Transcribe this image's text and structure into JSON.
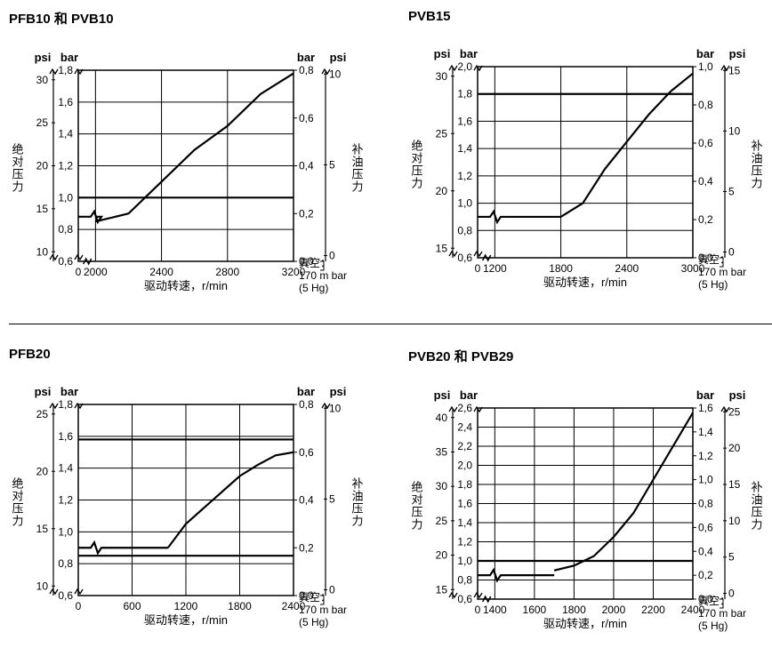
{
  "charts": [
    {
      "title": "PFB10  和  PVB10",
      "left_psi": {
        "label": "psi",
        "ticks": [
          10,
          15,
          20,
          25,
          30
        ]
      },
      "left_bar": {
        "label": "bar",
        "ticks": [
          0.6,
          0.8,
          1.0,
          1.2,
          1.4,
          1.6,
          1.8
        ],
        "ylim": [
          0.6,
          1.8
        ]
      },
      "right_bar": {
        "label": "bar",
        "ticks": [
          0,
          0.2,
          0.4,
          0.6,
          0.8
        ],
        "ylim": [
          0,
          0.8
        ]
      },
      "right_psi": {
        "label": "psi",
        "ticks": [
          0,
          5,
          10
        ]
      },
      "x": {
        "label": "驱动转速，r/min",
        "ticks": [
          0,
          2000,
          2400,
          2800,
          3200
        ],
        "xlim": [
          0,
          3200
        ],
        "break_after": 0
      },
      "y_axis_label_left": "绝对压力",
      "y_axis_label_right": "补油压力",
      "note": {
        "lines": [
          "真空：",
          "170 m bar",
          "(5  Hg)"
        ]
      },
      "curve": [
        [
          2000,
          0.85
        ],
        [
          2200,
          0.9
        ],
        [
          2400,
          1.1
        ],
        [
          2600,
          1.3
        ],
        [
          2800,
          1.45
        ],
        [
          3000,
          1.65
        ],
        [
          3200,
          1.78
        ]
      ],
      "hline": 1.0,
      "zigzag_y": 0.88,
      "colors": {
        "line": "#000000",
        "grid": "#000000",
        "bg": "#ffffff"
      }
    },
    {
      "title": "PVB15",
      "left_psi": {
        "label": "psi",
        "ticks": [
          15,
          20,
          25,
          30
        ]
      },
      "left_bar": {
        "label": "bar",
        "ticks": [
          0.6,
          0.8,
          1.0,
          1.2,
          1.4,
          1.6,
          1.8,
          2.0
        ],
        "ylim": [
          0.6,
          2.0
        ]
      },
      "right_bar": {
        "label": "bar",
        "ticks": [
          0,
          0.2,
          0.4,
          0.6,
          0.8,
          1.0
        ],
        "ylim": [
          0,
          1.0
        ]
      },
      "right_psi": {
        "label": "psi",
        "ticks": [
          0,
          5,
          10,
          15
        ]
      },
      "x": {
        "label": "驱动转速，r/min",
        "ticks": [
          0,
          1200,
          1800,
          2400,
          3000
        ],
        "xlim": [
          0,
          3000
        ],
        "break_after": 0
      },
      "y_axis_label_left": "绝对压力",
      "y_axis_label_right": "补油压力",
      "note": {
        "lines": [
          "真空：",
          "170 m bar",
          "(5  Hg)"
        ]
      },
      "curve": [
        [
          1800,
          0.9
        ],
        [
          2000,
          1.0
        ],
        [
          2200,
          1.25
        ],
        [
          2400,
          1.45
        ],
        [
          2600,
          1.65
        ],
        [
          2800,
          1.82
        ],
        [
          3000,
          1.95
        ]
      ],
      "hline": 1.8,
      "zigzag_y": 0.9,
      "colors": {
        "line": "#000000",
        "grid": "#000000",
        "bg": "#ffffff"
      }
    },
    {
      "title": "PFB20",
      "left_psi": {
        "label": "psi",
        "ticks": [
          10,
          15,
          20,
          25
        ]
      },
      "left_bar": {
        "label": "bar",
        "ticks": [
          0.6,
          0.8,
          1.0,
          1.2,
          1.4,
          1.6,
          1.8
        ],
        "ylim": [
          0.6,
          1.8
        ]
      },
      "right_bar": {
        "label": "bar",
        "ticks": [
          0,
          0.2,
          0.4,
          0.6,
          0.8
        ],
        "ylim": [
          0,
          0.8
        ]
      },
      "right_psi": {
        "label": "psi",
        "ticks": [
          0,
          5,
          10
        ]
      },
      "x": {
        "label": "驱动转速，r/min",
        "ticks": [
          0,
          600,
          1200,
          1800,
          2400
        ],
        "xlim": [
          0,
          2400
        ],
        "break_after": null
      },
      "y_axis_label_left": "绝对压力",
      "y_axis_label_right": "补油压力",
      "note": {
        "lines": [
          "真空：",
          "170 m bar",
          "(5  Hg)"
        ]
      },
      "curve": [
        [
          1000,
          0.9
        ],
        [
          1200,
          1.05
        ],
        [
          1400,
          1.15
        ],
        [
          1600,
          1.25
        ],
        [
          1800,
          1.35
        ],
        [
          2000,
          1.42
        ],
        [
          2200,
          1.48
        ],
        [
          2400,
          1.5
        ]
      ],
      "hline": 1.58,
      "hline2": 0.85,
      "zigzag_y": 0.9,
      "colors": {
        "line": "#000000",
        "grid": "#000000",
        "bg": "#ffffff"
      }
    },
    {
      "title": "PVB20  和  PVB29",
      "left_psi": {
        "label": "psi",
        "ticks": [
          15,
          20,
          25,
          30,
          35,
          40
        ]
      },
      "left_bar": {
        "label": "bar",
        "ticks": [
          0.6,
          0.8,
          1.0,
          1.2,
          1.4,
          1.6,
          1.8,
          2.0,
          2.2,
          2.4,
          2.6
        ],
        "ylim": [
          0.6,
          2.6
        ]
      },
      "right_bar": {
        "label": "bar",
        "ticks": [
          0,
          0.2,
          0.4,
          0.6,
          0.8,
          1.0,
          1.2,
          1.4,
          1.6
        ],
        "ylim": [
          0,
          1.6
        ]
      },
      "right_psi": {
        "label": "psi",
        "ticks": [
          0,
          5,
          10,
          15,
          20,
          25
        ]
      },
      "x": {
        "label": "驱动转速，r/min",
        "ticks": [
          0,
          1400,
          1600,
          1800,
          2000,
          2200,
          2400
        ],
        "xlim": [
          0,
          2400
        ],
        "break_after": 0
      },
      "y_axis_label_left": "绝对压力",
      "y_axis_label_right": "补油压力",
      "note": {
        "lines": [
          "真空：",
          "170 m bar",
          "(5  Hg)"
        ]
      },
      "curve": [
        [
          1700,
          0.9
        ],
        [
          1800,
          0.95
        ],
        [
          1900,
          1.05
        ],
        [
          2000,
          1.25
        ],
        [
          2100,
          1.5
        ],
        [
          2200,
          1.85
        ],
        [
          2300,
          2.2
        ],
        [
          2400,
          2.55
        ]
      ],
      "hline": 1.0,
      "zigzag_y": 0.85,
      "colors": {
        "line": "#000000",
        "grid": "#000000",
        "bg": "#ffffff"
      }
    }
  ],
  "layout": {
    "font_family": "Arial",
    "title_fontsize": 15,
    "axis_label_fontsize": 12,
    "tick_fontsize": 12
  }
}
